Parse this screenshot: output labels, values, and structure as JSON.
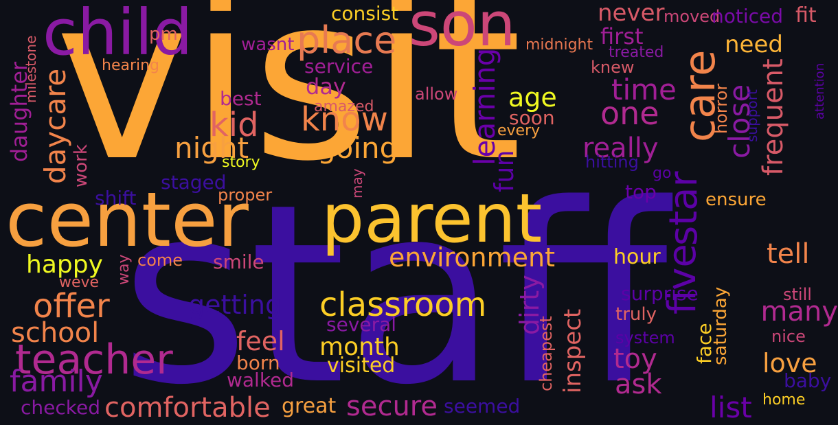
{
  "cloud": {
    "background": "#0d0f17",
    "palette": [
      "#fca636",
      "#e16462",
      "#b12a90",
      "#6a00a8",
      "#3b0f9f",
      "#fcce25",
      "#f0f921",
      "#cc4778",
      "#f2844b"
    ],
    "words": [
      {
        "text": "visit",
        "color": "#fca636"
      },
      {
        "text": "staff",
        "color": "#3b0f9f"
      },
      {
        "text": "child",
        "color": "#8a1aa3"
      },
      {
        "text": "son",
        "color": "#cc4778"
      },
      {
        "text": "center",
        "color": "#f7a040"
      },
      {
        "text": "parent",
        "color": "#fcc32f"
      },
      {
        "text": "place",
        "color": "#e77a52"
      },
      {
        "text": "consist",
        "color": "#fcce25"
      },
      {
        "text": "pm",
        "color": "#e16462"
      },
      {
        "text": "wasnt",
        "color": "#a11f96"
      },
      {
        "text": "never",
        "color": "#d85a68"
      },
      {
        "text": "moved",
        "color": "#cc4778"
      },
      {
        "text": "noticed",
        "color": "#7a0ba8"
      },
      {
        "text": "fit",
        "color": "#d85a68"
      },
      {
        "text": "first",
        "color": "#a11f96"
      },
      {
        "text": "need",
        "color": "#fcb437"
      },
      {
        "text": "midnight",
        "color": "#e87750"
      },
      {
        "text": "treated",
        "color": "#8a1aa3"
      },
      {
        "text": "milestone",
        "color": "#d85a68"
      },
      {
        "text": "hearing",
        "color": "#f2844b"
      },
      {
        "text": "service",
        "color": "#a11f96"
      },
      {
        "text": "day",
        "color": "#b12a90"
      },
      {
        "text": "knew",
        "color": "#d85a68"
      },
      {
        "text": "care",
        "color": "#f2844b"
      },
      {
        "text": "time",
        "color": "#a11f96"
      },
      {
        "text": "attention",
        "color": "#5c01a6"
      },
      {
        "text": "age",
        "color": "#f0f921"
      },
      {
        "text": "allow",
        "color": "#cc4778"
      },
      {
        "text": "amazed",
        "color": "#d85a68"
      },
      {
        "text": "best",
        "color": "#b12a90"
      },
      {
        "text": "know",
        "color": "#f2844b"
      },
      {
        "text": "one",
        "color": "#b12a90"
      },
      {
        "text": "kid",
        "color": "#e16462"
      },
      {
        "text": "soon",
        "color": "#e16462"
      },
      {
        "text": "every",
        "color": "#f7a040"
      },
      {
        "text": "close",
        "color": "#8a1aa3"
      },
      {
        "text": "horror",
        "color": "#f2844b"
      },
      {
        "text": "support",
        "color": "#3b0f9f"
      },
      {
        "text": "frequent",
        "color": "#d85a68"
      },
      {
        "text": "daughter",
        "color": "#a11f96"
      },
      {
        "text": "daycare",
        "color": "#f2844b"
      },
      {
        "text": "night",
        "color": "#f7a040"
      },
      {
        "text": "going",
        "color": "#fca636"
      },
      {
        "text": "learning",
        "color": "#6a00a8"
      },
      {
        "text": "really",
        "color": "#a11f96"
      },
      {
        "text": "work",
        "color": "#cc4778"
      },
      {
        "text": "story",
        "color": "#f0f921"
      },
      {
        "text": "fun",
        "color": "#5c01a6"
      },
      {
        "text": "hitting",
        "color": "#3b0f9f"
      },
      {
        "text": "go",
        "color": "#5c01a6"
      },
      {
        "text": "staged",
        "color": "#3b0f9f"
      },
      {
        "text": "may",
        "color": "#cc4778"
      },
      {
        "text": "shift",
        "color": "#3b0f9f"
      },
      {
        "text": "proper",
        "color": "#f2844b"
      },
      {
        "text": "top",
        "color": "#6a00a8"
      },
      {
        "text": "star",
        "color": "#5c01a6"
      },
      {
        "text": "ensure",
        "color": "#fca636"
      },
      {
        "text": "happy",
        "color": "#f0f921"
      },
      {
        "text": "way",
        "color": "#cc4778"
      },
      {
        "text": "come",
        "color": "#f2844b"
      },
      {
        "text": "smile",
        "color": "#cc4778"
      },
      {
        "text": "environment",
        "color": "#fca636"
      },
      {
        "text": "hour",
        "color": "#fcce25"
      },
      {
        "text": "tell",
        "color": "#f2844b"
      },
      {
        "text": "weve",
        "color": "#e16462"
      },
      {
        "text": "offer",
        "color": "#f2844b"
      },
      {
        "text": "getting",
        "color": "#3b0f9f"
      },
      {
        "text": "classroom",
        "color": "#fcce25"
      },
      {
        "text": "dirty",
        "color": "#8a1aa3"
      },
      {
        "text": "five",
        "color": "#5c01a6"
      },
      {
        "text": "surprise",
        "color": "#5c01a6"
      },
      {
        "text": "still",
        "color": "#cc4778"
      },
      {
        "text": "many",
        "color": "#b12a90"
      },
      {
        "text": "school",
        "color": "#f2844b"
      },
      {
        "text": "several",
        "color": "#8a1aa3"
      },
      {
        "text": "truly",
        "color": "#e16462"
      },
      {
        "text": "saturday",
        "color": "#fca636"
      },
      {
        "text": "cheapest",
        "color": "#e16462"
      },
      {
        "text": "inspect",
        "color": "#e16462"
      },
      {
        "text": "face",
        "color": "#fcce25"
      },
      {
        "text": "system",
        "color": "#5c01a6"
      },
      {
        "text": "nice",
        "color": "#cc4778"
      },
      {
        "text": "feel",
        "color": "#e16462"
      },
      {
        "text": "month",
        "color": "#fcce25"
      },
      {
        "text": "teacher",
        "color": "#b12a90"
      },
      {
        "text": "toy",
        "color": "#b12a90"
      },
      {
        "text": "love",
        "color": "#f7a040"
      },
      {
        "text": "born",
        "color": "#f2844b"
      },
      {
        "text": "visited",
        "color": "#fcce25"
      },
      {
        "text": "family",
        "color": "#8a1aa3"
      },
      {
        "text": "walked",
        "color": "#b12a90"
      },
      {
        "text": "ask",
        "color": "#b12a90"
      },
      {
        "text": "baby",
        "color": "#3b0f9f"
      },
      {
        "text": "comfortable",
        "color": "#e16462"
      },
      {
        "text": "secure",
        "color": "#b12a90"
      },
      {
        "text": "list",
        "color": "#6a00a8"
      },
      {
        "text": "home",
        "color": "#fcce25"
      },
      {
        "text": "checked",
        "color": "#8a1aa3"
      },
      {
        "text": "great",
        "color": "#f7a040"
      },
      {
        "text": "seemed",
        "color": "#3b0f9f"
      }
    ]
  }
}
